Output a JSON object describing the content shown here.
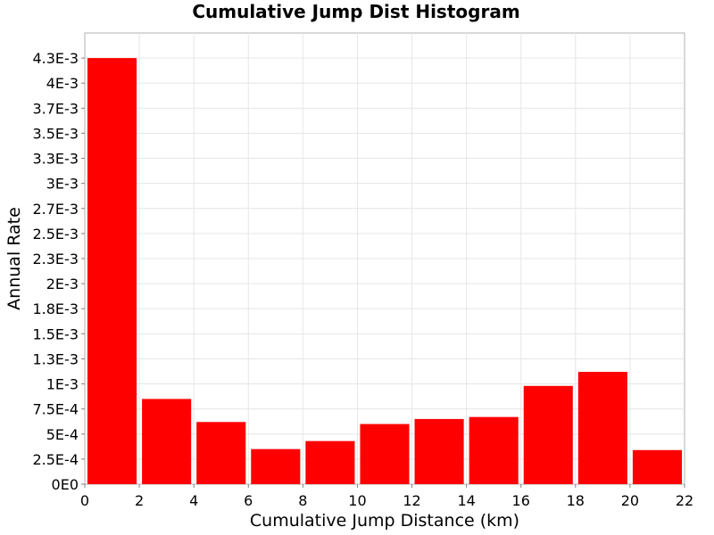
{
  "chart_data": {
    "type": "bar",
    "title": "Cumulative Jump Dist Histogram",
    "xlabel": "Cumulative Jump Distance (km)",
    "ylabel": "Annual Rate",
    "xlim": [
      0,
      22
    ],
    "ylim": [
      0,
      0.0045
    ],
    "x_ticks": [
      0,
      2,
      4,
      6,
      8,
      10,
      12,
      14,
      16,
      18,
      20,
      22
    ],
    "x_tick_labels": [
      "0",
      "2",
      "4",
      "6",
      "8",
      "10",
      "12",
      "14",
      "16",
      "18",
      "20",
      "22"
    ],
    "y_ticks": [
      0,
      0.00025,
      0.0005,
      0.00075,
      0.001,
      0.00125,
      0.0015,
      0.00175,
      0.002,
      0.00225,
      0.0025,
      0.00275,
      0.003,
      0.00325,
      0.0035,
      0.00375,
      0.004,
      0.00425
    ],
    "y_tick_labels": [
      "0E0",
      "2.5E-4",
      "5E-4",
      "7.5E-4",
      "1E-3",
      "1.3E-3",
      "1.5E-3",
      "1.8E-3",
      "2E-3",
      "2.3E-3",
      "2.5E-3",
      "2.7E-3",
      "3E-3",
      "3.3E-3",
      "3.5E-3",
      "3.7E-3",
      "4E-3",
      "4.3E-3"
    ],
    "grid": true,
    "bar_color": "#ff0000",
    "bars": [
      {
        "x0": 0,
        "x1": 2,
        "value": 0.00425
      },
      {
        "x0": 2,
        "x1": 4,
        "value": 0.00085
      },
      {
        "x0": 4,
        "x1": 6,
        "value": 0.00062
      },
      {
        "x0": 6,
        "x1": 8,
        "value": 0.00035
      },
      {
        "x0": 8,
        "x1": 10,
        "value": 0.00043
      },
      {
        "x0": 10,
        "x1": 12,
        "value": 0.0006
      },
      {
        "x0": 12,
        "x1": 14,
        "value": 0.00065
      },
      {
        "x0": 14,
        "x1": 16,
        "value": 0.00067
      },
      {
        "x0": 16,
        "x1": 18,
        "value": 0.00098
      },
      {
        "x0": 18,
        "x1": 20,
        "value": 0.00112
      },
      {
        "x0": 20,
        "x1": 22,
        "value": 0.00034
      }
    ]
  }
}
